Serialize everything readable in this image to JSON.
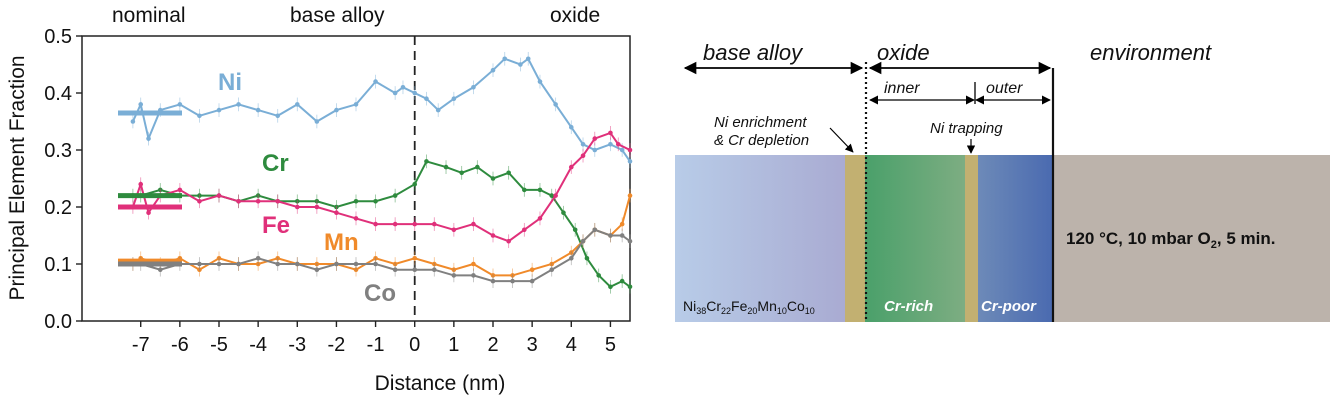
{
  "chart_data": {
    "type": "line",
    "title": "",
    "xlabel": "Distance (nm)",
    "ylabel": "Principal Element Fraction",
    "xlim": [
      -8.5,
      5.5
    ],
    "ylim": [
      0,
      0.5
    ],
    "xticks": [
      -7,
      -6,
      -5,
      -4,
      -3,
      -2,
      -1,
      0,
      1,
      2,
      3,
      4,
      5
    ],
    "yticks": [
      0.0,
      0.1,
      0.2,
      0.3,
      0.4,
      0.5
    ],
    "grid": false,
    "legend": "inline labels",
    "region_labels": [
      "nominal",
      "base alloy",
      "oxide"
    ],
    "interface_x": 0,
    "series": [
      {
        "name": "Ni",
        "color": "#7aaed6",
        "nominal": 0.365,
        "points": [
          [
            -7.2,
            0.35
          ],
          [
            -7.0,
            0.38
          ],
          [
            -6.8,
            0.32
          ],
          [
            -6.5,
            0.37
          ],
          [
            -6.0,
            0.38
          ],
          [
            -5.5,
            0.36
          ],
          [
            -5.0,
            0.37
          ],
          [
            -4.5,
            0.38
          ],
          [
            -4.0,
            0.37
          ],
          [
            -3.5,
            0.36
          ],
          [
            -3.0,
            0.38
          ],
          [
            -2.5,
            0.35
          ],
          [
            -2.0,
            0.37
          ],
          [
            -1.5,
            0.38
          ],
          [
            -1.0,
            0.42
          ],
          [
            -0.5,
            0.4
          ],
          [
            -0.3,
            0.41
          ],
          [
            0.0,
            0.4
          ],
          [
            0.3,
            0.39
          ],
          [
            0.6,
            0.37
          ],
          [
            1.0,
            0.39
          ],
          [
            1.5,
            0.41
          ],
          [
            2.0,
            0.44
          ],
          [
            2.3,
            0.46
          ],
          [
            2.7,
            0.45
          ],
          [
            2.9,
            0.46
          ],
          [
            3.2,
            0.42
          ],
          [
            3.6,
            0.38
          ],
          [
            4.0,
            0.34
          ],
          [
            4.3,
            0.31
          ],
          [
            4.6,
            0.3
          ],
          [
            5.0,
            0.31
          ],
          [
            5.3,
            0.3
          ],
          [
            5.5,
            0.28
          ]
        ]
      },
      {
        "name": "Cr",
        "color": "#2e8b3e",
        "nominal": 0.22,
        "points": [
          [
            -7.2,
            0.22
          ],
          [
            -7.0,
            0.22
          ],
          [
            -6.5,
            0.23
          ],
          [
            -6.0,
            0.22
          ],
          [
            -5.5,
            0.22
          ],
          [
            -5.0,
            0.22
          ],
          [
            -4.5,
            0.21
          ],
          [
            -4.0,
            0.22
          ],
          [
            -3.5,
            0.21
          ],
          [
            -3.0,
            0.21
          ],
          [
            -2.5,
            0.21
          ],
          [
            -2.0,
            0.2
          ],
          [
            -1.5,
            0.21
          ],
          [
            -1.0,
            0.21
          ],
          [
            -0.5,
            0.22
          ],
          [
            0.0,
            0.24
          ],
          [
            0.3,
            0.28
          ],
          [
            0.8,
            0.27
          ],
          [
            1.2,
            0.26
          ],
          [
            1.6,
            0.27
          ],
          [
            2.0,
            0.25
          ],
          [
            2.4,
            0.26
          ],
          [
            2.8,
            0.23
          ],
          [
            3.2,
            0.23
          ],
          [
            3.5,
            0.22
          ],
          [
            3.8,
            0.19
          ],
          [
            4.1,
            0.16
          ],
          [
            4.4,
            0.11
          ],
          [
            4.7,
            0.08
          ],
          [
            5.0,
            0.06
          ],
          [
            5.3,
            0.07
          ],
          [
            5.5,
            0.06
          ]
        ]
      },
      {
        "name": "Fe",
        "color": "#e0307a",
        "nominal": 0.2,
        "points": [
          [
            -7.2,
            0.2
          ],
          [
            -7.0,
            0.24
          ],
          [
            -6.8,
            0.19
          ],
          [
            -6.5,
            0.22
          ],
          [
            -6.0,
            0.23
          ],
          [
            -5.5,
            0.21
          ],
          [
            -5.0,
            0.22
          ],
          [
            -4.5,
            0.21
          ],
          [
            -4.0,
            0.21
          ],
          [
            -3.5,
            0.21
          ],
          [
            -3.0,
            0.2
          ],
          [
            -2.5,
            0.2
          ],
          [
            -2.0,
            0.19
          ],
          [
            -1.5,
            0.18
          ],
          [
            -1.0,
            0.17
          ],
          [
            -0.5,
            0.17
          ],
          [
            0.0,
            0.17
          ],
          [
            0.5,
            0.17
          ],
          [
            1.0,
            0.16
          ],
          [
            1.5,
            0.17
          ],
          [
            2.0,
            0.15
          ],
          [
            2.4,
            0.14
          ],
          [
            2.8,
            0.16
          ],
          [
            3.2,
            0.18
          ],
          [
            3.6,
            0.22
          ],
          [
            4.0,
            0.27
          ],
          [
            4.3,
            0.29
          ],
          [
            4.6,
            0.32
          ],
          [
            5.0,
            0.33
          ],
          [
            5.2,
            0.31
          ],
          [
            5.5,
            0.3
          ]
        ]
      },
      {
        "name": "Mn",
        "color": "#f08a2a",
        "nominal": 0.105,
        "points": [
          [
            -7.2,
            0.1
          ],
          [
            -7.0,
            0.11
          ],
          [
            -6.5,
            0.1
          ],
          [
            -6.0,
            0.11
          ],
          [
            -5.5,
            0.09
          ],
          [
            -5.0,
            0.11
          ],
          [
            -4.5,
            0.1
          ],
          [
            -4.0,
            0.1
          ],
          [
            -3.5,
            0.11
          ],
          [
            -3.0,
            0.1
          ],
          [
            -2.5,
            0.1
          ],
          [
            -2.0,
            0.1
          ],
          [
            -1.5,
            0.09
          ],
          [
            -1.0,
            0.11
          ],
          [
            -0.5,
            0.1
          ],
          [
            0.0,
            0.11
          ],
          [
            0.5,
            0.1
          ],
          [
            1.0,
            0.09
          ],
          [
            1.5,
            0.1
          ],
          [
            2.0,
            0.08
          ],
          [
            2.5,
            0.08
          ],
          [
            3.0,
            0.09
          ],
          [
            3.5,
            0.1
          ],
          [
            4.0,
            0.12
          ],
          [
            4.3,
            0.14
          ],
          [
            4.6,
            0.16
          ],
          [
            5.0,
            0.15
          ],
          [
            5.3,
            0.17
          ],
          [
            5.5,
            0.22
          ]
        ]
      },
      {
        "name": "Co",
        "color": "#808080",
        "nominal": 0.1,
        "points": [
          [
            -7.2,
            0.1
          ],
          [
            -7.0,
            0.1
          ],
          [
            -6.5,
            0.09
          ],
          [
            -6.0,
            0.1
          ],
          [
            -5.5,
            0.1
          ],
          [
            -5.0,
            0.1
          ],
          [
            -4.5,
            0.1
          ],
          [
            -4.0,
            0.11
          ],
          [
            -3.5,
            0.1
          ],
          [
            -3.0,
            0.1
          ],
          [
            -2.5,
            0.09
          ],
          [
            -2.0,
            0.1
          ],
          [
            -1.5,
            0.1
          ],
          [
            -1.0,
            0.1
          ],
          [
            -0.5,
            0.09
          ],
          [
            0.0,
            0.09
          ],
          [
            0.5,
            0.09
          ],
          [
            1.0,
            0.08
          ],
          [
            1.5,
            0.08
          ],
          [
            2.0,
            0.07
          ],
          [
            2.5,
            0.07
          ],
          [
            3.0,
            0.07
          ],
          [
            3.5,
            0.09
          ],
          [
            4.0,
            0.11
          ],
          [
            4.3,
            0.14
          ],
          [
            4.6,
            0.16
          ],
          [
            5.0,
            0.15
          ],
          [
            5.3,
            0.15
          ],
          [
            5.5,
            0.14
          ]
        ]
      }
    ]
  },
  "schematic": {
    "arrow_labels": {
      "base_alloy": "base alloy",
      "oxide": "oxide",
      "environment": "environment",
      "inner": "inner",
      "outer": "outer"
    },
    "annotations": {
      "ni_enrichment_line1": "Ni enrichment",
      "ni_enrichment_line2": "& Cr depletion",
      "ni_trapping": "Ni trapping"
    },
    "layers": {
      "base_alloy_formula": {
        "main": "Ni",
        "parts": [
          [
            "38",
            "Cr"
          ],
          [
            "22",
            "Fe"
          ],
          [
            "20",
            "Mn"
          ],
          [
            "10",
            "Co"
          ],
          [
            "10",
            ""
          ]
        ]
      },
      "cr_rich": "Cr-rich",
      "cr_poor": "Cr-poor"
    },
    "conditions": {
      "prefix": "120 °C, 10 mbar O",
      "subscript": "2",
      "suffix": ", 5 min."
    },
    "colors": {
      "base_alloy_start": "#b8cce8",
      "base_alloy_end": "#a9abd2",
      "enriched_band": "#c2b071",
      "cr_rich_start": "#4aa06a",
      "cr_rich_end": "#7dad82",
      "cr_poor_start": "#6d8ab8",
      "cr_poor_end": "#4a6ab0",
      "environment": "#bcb3ab"
    }
  }
}
